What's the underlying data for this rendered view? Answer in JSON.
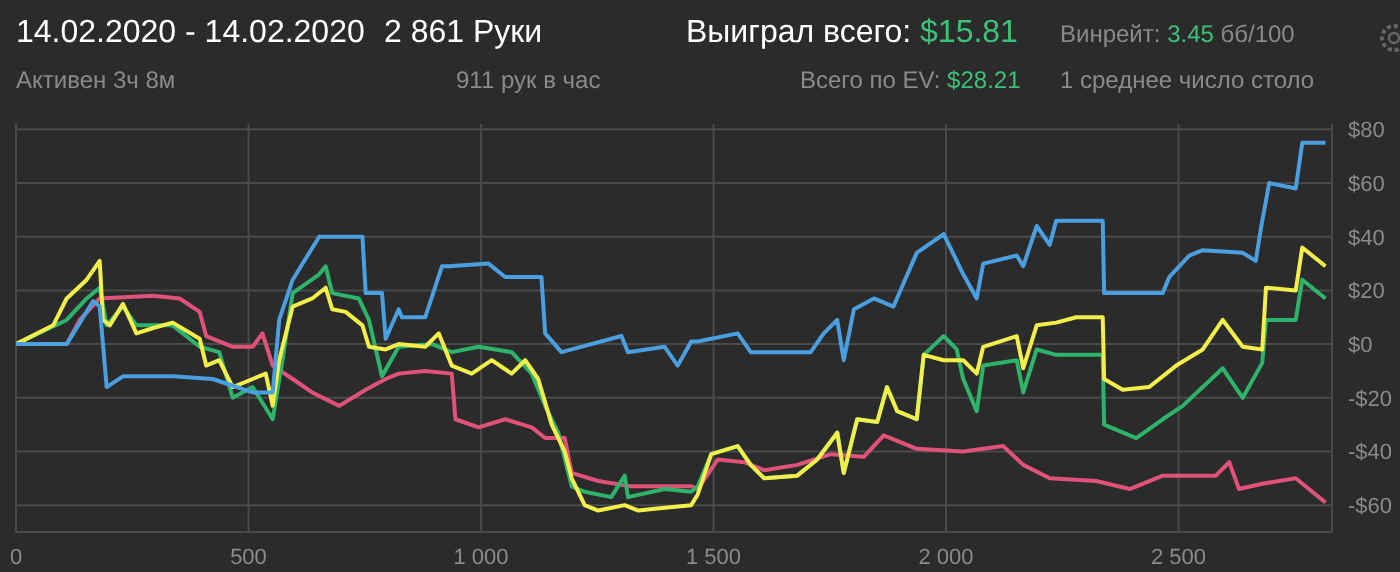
{
  "chart_data": {
    "type": "line",
    "title": "14.02.2020 - 14.02.2020",
    "subtitle": "Активен 3ч 8м",
    "annotations": [
      "2 861 Руки",
      "911 рук в час",
      "Выиграл всего: $15.81",
      "Всего по EV: $28.21",
      "Винрейт: 3.45 бб/100",
      "1 среднее число столо"
    ],
    "xlim": [
      0,
      2830
    ],
    "xticks": [
      0,
      500,
      {
        "value": 1000,
        "label": "1 000"
      },
      {
        "value": 1500,
        "label": "1 500"
      },
      {
        "value": 2000,
        "label": "2 000"
      },
      {
        "value": 2500,
        "label": "2 500"
      }
    ],
    "ylim": [
      -70,
      82
    ],
    "yticks": [
      {
        "value": -60,
        "label": "-$60"
      },
      {
        "value": -40,
        "label": "-$40"
      },
      {
        "value": -20,
        "label": "-$20"
      },
      {
        "value": 0,
        "label": "$0"
      },
      {
        "value": 20,
        "label": "$20"
      },
      {
        "value": 40,
        "label": "$40"
      },
      {
        "value": 60,
        "label": "$60"
      },
      {
        "value": 80,
        "label": "$80"
      }
    ],
    "grid": true,
    "series": [
      {
        "color": "#e0527a",
        "x": [
          0,
          109,
          137,
          180,
          295,
          352,
          395,
          409,
          466,
          509,
          530,
          552,
          595,
          637,
          695,
          752,
          795,
          823,
          880,
          937,
          945,
          995,
          1052,
          1109,
          1138,
          1180,
          1195,
          1252,
          1323,
          1452,
          1466,
          1509,
          1566,
          1609,
          1680,
          1752,
          1823,
          1866,
          1937,
          2037,
          2123,
          2166,
          2223,
          2323,
          2395,
          2466,
          2580,
          2609,
          2630,
          2680,
          2752,
          2816
        ],
        "values": [
          0,
          0,
          9,
          17,
          18,
          17,
          12,
          3,
          -1,
          -1,
          4,
          -8,
          -13,
          -18,
          -23,
          -17,
          -13,
          -11,
          -10,
          -11,
          -28,
          -31,
          -28,
          -31,
          -35,
          -35,
          -48,
          -51,
          -53,
          -53,
          -54,
          -43,
          -44,
          -47,
          -45,
          -41,
          -42,
          -34,
          -39,
          -40,
          -38,
          -45,
          -50,
          -51,
          -54,
          -49,
          -49,
          -44,
          -54,
          -52,
          -50,
          -59
        ]
      },
      {
        "color": "#2db36a",
        "x": [
          0,
          109,
          152,
          180,
          195,
          230,
          259,
          337,
          395,
          437,
          466,
          509,
          552,
          573,
          595,
          652,
          666,
          680,
          737,
          759,
          787,
          823,
          895,
          937,
          995,
          1066,
          1109,
          1138,
          1166,
          1195,
          1223,
          1280,
          1309,
          1316,
          1395,
          1452,
          1466,
          1495,
          1552,
          1580,
          1609,
          1680,
          1723,
          1766,
          1780,
          1809,
          1852,
          1873,
          1895,
          1937,
          1952,
          1995,
          2023,
          2037,
          2066,
          2080,
          2152,
          2166,
          2195,
          2237,
          2337,
          2340,
          2409,
          2466,
          2509,
          2595,
          2638,
          2680,
          2688,
          2752,
          2766,
          2816
        ],
        "values": [
          0,
          9,
          17,
          21,
          7,
          14,
          7,
          7,
          -1,
          -3,
          -20,
          -16,
          -28,
          -6,
          19,
          26,
          29,
          19,
          17,
          9,
          -12,
          -1,
          0,
          -3,
          -1,
          -3,
          -11,
          -23,
          -33,
          -53,
          -55,
          -57,
          -49,
          -57,
          -54,
          -55,
          -53,
          -41,
          -38,
          -45,
          -50,
          -49,
          -43,
          -33,
          -48,
          -28,
          -29,
          -16,
          -25,
          -28,
          -4,
          3,
          -2,
          -13,
          -25,
          -8,
          -6,
          -18,
          -2,
          -4,
          -4,
          -30,
          -35,
          -28,
          -23,
          -9,
          -20,
          -7,
          9,
          9,
          24,
          17
        ]
      },
      {
        "color": "#f3ee4a",
        "x": [
          0,
          80,
          109,
          152,
          180,
          187,
          202,
          230,
          259,
          295,
          337,
          395,
          409,
          437,
          466,
          509,
          537,
          552,
          566,
          595,
          637,
          666,
          680,
          709,
          745,
          759,
          795,
          823,
          880,
          909,
          937,
          980,
          1023,
          1066,
          1095,
          1123,
          1152,
          1180,
          1195,
          1223,
          1252,
          1309,
          1338,
          1395,
          1452,
          1466,
          1495,
          1552,
          1580,
          1609,
          1680,
          1723,
          1766,
          1780,
          1809,
          1852,
          1873,
          1895,
          1937,
          1952,
          1995,
          2037,
          2066,
          2080,
          2152,
          2166,
          2195,
          2237,
          2280,
          2337,
          2340,
          2380,
          2437,
          2495,
          2552,
          2595,
          2638,
          2680,
          2688,
          2752,
          2766,
          2816
        ],
        "values": [
          0,
          7,
          17,
          24,
          31,
          9,
          7,
          15,
          4,
          6,
          8,
          2,
          -8,
          -6,
          -16,
          -13,
          -11,
          -23,
          -6,
          14,
          17,
          21,
          13,
          12,
          7,
          -1,
          -2,
          0,
          -1,
          4,
          -8,
          -11,
          -6,
          -11,
          -6,
          -13,
          -30,
          -40,
          -50,
          -60,
          -62,
          -60,
          -62,
          -61,
          -60,
          -56,
          -41,
          -38,
          -45,
          -50,
          -49,
          -43,
          -33,
          -48,
          -28,
          -29,
          -16,
          -25,
          -28,
          -4,
          -6,
          -6,
          -11,
          -1,
          3,
          -9,
          7,
          8,
          10,
          10,
          -13,
          -17,
          -16,
          -8,
          -2,
          9,
          -1,
          -2,
          21,
          20,
          36,
          29
        ]
      },
      {
        "color": "#4a9fe0",
        "x": [
          0,
          109,
          166,
          180,
          195,
          230,
          337,
          423,
          509,
          552,
          566,
          595,
          652,
          745,
          752,
          787,
          795,
          823,
          830,
          880,
          916,
          930,
          1016,
          1052,
          1130,
          1138,
          1173,
          1302,
          1316,
          1395,
          1423,
          1452,
          1466,
          1552,
          1580,
          1709,
          1737,
          1766,
          1780,
          1802,
          1845,
          1887,
          1937,
          1995,
          2037,
          2066,
          2080,
          2152,
          2166,
          2195,
          2223,
          2237,
          2337,
          2340,
          2466,
          2480,
          2523,
          2552,
          2638,
          2666,
          2678,
          2695,
          2752,
          2766,
          2816
        ],
        "values": [
          0,
          0,
          16,
          14,
          -16,
          -12,
          -12,
          -13,
          -18,
          -18,
          9,
          24,
          40,
          40,
          19,
          19,
          2,
          13,
          10,
          10,
          29,
          29,
          30,
          25,
          25,
          4,
          -3,
          3,
          -3,
          -1,
          -8,
          1,
          1,
          4,
          -3,
          -3,
          4,
          9,
          -6,
          13,
          17,
          14,
          34,
          41,
          26,
          17,
          30,
          33,
          29,
          44,
          37,
          46,
          46,
          19,
          19,
          25,
          33,
          35,
          34,
          31,
          44,
          60,
          58,
          75,
          75
        ]
      }
    ]
  }
}
